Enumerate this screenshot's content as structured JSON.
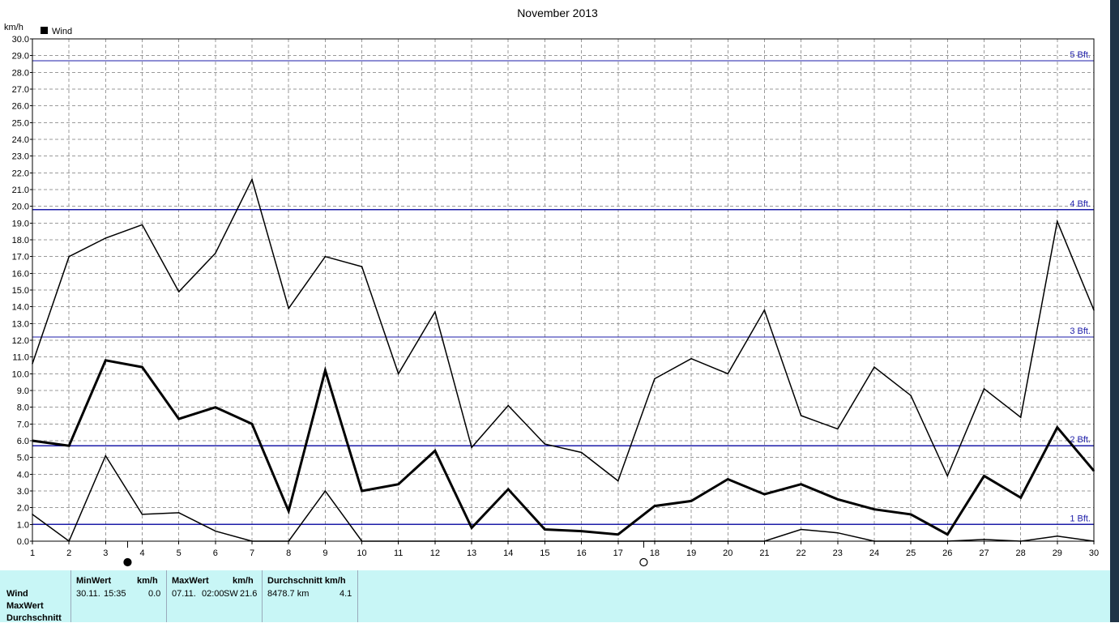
{
  "chart_data": {
    "type": "line",
    "title": "November 2013",
    "ylabel": "km/h",
    "legend": [
      {
        "label": "Wind",
        "color": "#000000"
      }
    ],
    "legend_position": "top-left",
    "grid": true,
    "ylim": [
      0,
      30
    ],
    "y_ticks": [
      "0.0",
      "1.0",
      "2.0",
      "3.0",
      "4.0",
      "5.0",
      "6.0",
      "7.0",
      "8.0",
      "9.0",
      "10.0",
      "11.0",
      "12.0",
      "13.0",
      "14.0",
      "15.0",
      "16.0",
      "17.0",
      "18.0",
      "19.0",
      "20.0",
      "21.0",
      "22.0",
      "23.0",
      "24.0",
      "25.0",
      "26.0",
      "27.0",
      "28.0",
      "29.0",
      "30.0"
    ],
    "x": [
      1,
      2,
      3,
      4,
      5,
      6,
      7,
      8,
      9,
      10,
      11,
      12,
      13,
      14,
      15,
      16,
      17,
      18,
      19,
      20,
      21,
      22,
      23,
      24,
      25,
      26,
      27,
      28,
      29,
      30
    ],
    "x_tick_labels": [
      "1",
      "2",
      "3",
      "4",
      "5",
      "6",
      "7",
      "8",
      "9",
      "10",
      "11",
      "12",
      "13",
      "14",
      "15",
      "16",
      "17",
      "18",
      "19",
      "20",
      "21",
      "22",
      "23",
      "24",
      "25",
      "26",
      "27",
      "28",
      "29",
      "30"
    ],
    "series": [
      {
        "role": "max",
        "stroke_width": 1.5,
        "values": [
          10.6,
          17.0,
          18.1,
          18.9,
          14.9,
          17.2,
          21.6,
          13.9,
          17.0,
          16.4,
          10.0,
          13.7,
          5.6,
          8.1,
          5.8,
          5.3,
          3.6,
          9.7,
          10.9,
          10.0,
          13.8,
          7.5,
          6.7,
          10.4,
          8.7,
          3.9,
          9.1,
          7.4,
          19.1,
          13.8
        ]
      },
      {
        "role": "average",
        "stroke_width": 3,
        "values": [
          6.0,
          5.7,
          10.8,
          10.4,
          7.3,
          8.0,
          7.0,
          1.8,
          10.2,
          3.0,
          3.4,
          5.4,
          0.8,
          3.1,
          0.7,
          0.6,
          0.4,
          2.1,
          2.4,
          3.7,
          2.8,
          3.4,
          2.5,
          1.9,
          1.6,
          0.4,
          3.9,
          2.6,
          6.8,
          4.2
        ]
      },
      {
        "role": "min",
        "stroke_width": 1.5,
        "values": [
          1.6,
          0.0,
          5.1,
          1.6,
          1.7,
          0.6,
          0.0,
          0.0,
          3.0,
          0.0,
          0.0,
          0.0,
          0.0,
          0.0,
          0.0,
          0.0,
          0.0,
          0.0,
          0.0,
          0.0,
          0.0,
          0.7,
          0.5,
          0.0,
          0.0,
          0.0,
          0.1,
          0.0,
          0.3,
          0.0
        ]
      }
    ],
    "reference_lines": [
      {
        "label": "1 Bft.",
        "value": 1.0
      },
      {
        "label": "2 Bft.",
        "value": 5.7
      },
      {
        "label": "3 Bft.",
        "value": 12.2
      },
      {
        "label": "4 Bft.",
        "value": 19.8
      },
      {
        "label": "5 Bft.",
        "value": 28.7
      }
    ],
    "reference_color": "#1c1ca8",
    "moon_phases": [
      {
        "day": 3.6,
        "symbol": "●",
        "phase": "new moon"
      },
      {
        "day": 17.7,
        "symbol": "○",
        "phase": "full moon"
      }
    ]
  },
  "info_table": {
    "row_labels": [
      "Wind",
      "MaxWert",
      "Durchschnitt"
    ],
    "min": {
      "header": "MinWert",
      "unit": "km/h",
      "date": "30.11.",
      "time": "15:35",
      "value": "0.0"
    },
    "max": {
      "header": "MaxWert",
      "unit": "km/h",
      "date": "07.11.",
      "time": "02:00",
      "dir": "SW",
      "value": "21.6"
    },
    "avg": {
      "header": "Durchschnitt km/h",
      "distance": "8478.7 km",
      "value": "4.1"
    }
  },
  "colors": {
    "background": "#ffffff",
    "panel": "#c8f6f6",
    "grid": "#9a9a9a",
    "series": "#000000"
  }
}
